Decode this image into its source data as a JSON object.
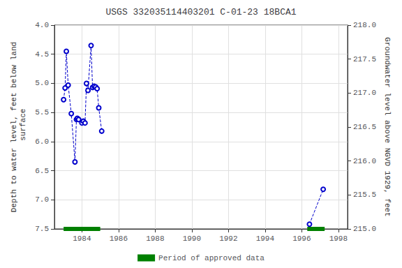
{
  "chart_data": {
    "type": "line",
    "title": "USGS 332035114403201 C-01-23 18BCA1",
    "ylabel": "Depth to water level, feet below land\n surface",
    "y2label": "Groundwater level above NGVD 1929, feet",
    "xlim": [
      1982.5,
      1998.5
    ],
    "xticks": [
      1984,
      1986,
      1988,
      1990,
      1992,
      1994,
      1996,
      1998
    ],
    "ylim": [
      7.5,
      4.0
    ],
    "yticks": [
      {
        "value": 4.0,
        "label": "4.0"
      },
      4.5,
      {
        "value": 5.0,
        "label": "5.0"
      },
      5.5,
      {
        "value": 6.0,
        "label": "6.0"
      },
      6.5,
      {
        "value": 7.0,
        "label": "7.0"
      },
      7.5
    ],
    "y2lim": [
      215.0,
      218.0
    ],
    "y2ticks": [
      {
        "value": 215.0,
        "label": "215.0"
      },
      215.5,
      {
        "value": 216.0,
        "label": "216.0"
      },
      216.5,
      {
        "value": 217.0,
        "label": "217.0"
      },
      217.5,
      {
        "value": 218.0,
        "label": "218.0"
      }
    ],
    "grid": true,
    "legend": "bottom",
    "series": [
      {
        "type": "line",
        "color": "#0000cc",
        "line_style": "dashed",
        "marker": "emptyCircle",
        "x": [
          1983.0,
          1983.08,
          1983.15,
          1983.25,
          1983.42,
          1983.62,
          1983.7,
          1983.75,
          1983.82
        ],
        "values": [
          5.28,
          5.08,
          4.45,
          5.03,
          5.52,
          6.35,
          5.62,
          5.6,
          5.62
        ]
      },
      {
        "type": "line",
        "color": "#0000cc",
        "line_style": "dashed",
        "marker": "emptyCircle",
        "x": [
          1983.82,
          1984.0,
          1984.08,
          1984.17,
          1984.25,
          1984.33,
          1984.5,
          1984.58,
          1984.67,
          1984.75,
          1984.83,
          1984.92,
          1985.08
        ],
        "values": [
          5.62,
          5.68,
          5.65,
          5.68,
          5.0,
          5.12,
          4.35,
          5.07,
          5.05,
          5.06,
          5.09,
          5.42,
          5.82
        ]
      },
      {
        "type": "line",
        "color": "#0000cc",
        "line_style": "dashed",
        "marker": "emptyCircle",
        "x": [
          1996.42,
          1997.17
        ],
        "values": [
          7.42,
          6.82
        ]
      },
      {
        "type": "period",
        "name": "Period of approved data",
        "color": "#008000",
        "y": 7.5,
        "periods": [
          {
            "x_start": 1983.0,
            "x_end": 1985.0
          },
          {
            "x_start": 1996.3,
            "x_end": 1997.25
          }
        ]
      }
    ]
  }
}
